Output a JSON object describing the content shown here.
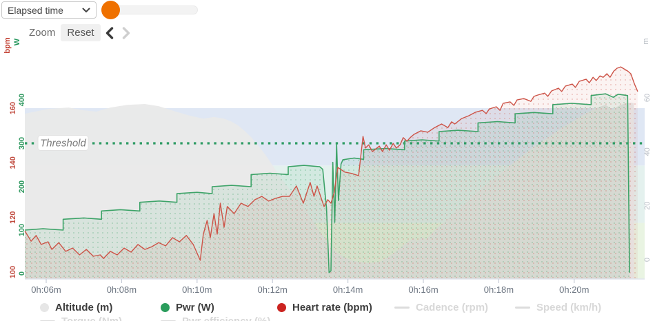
{
  "toolbar": {
    "metric_select": {
      "value": "Elapsed time"
    },
    "zoom_label": "Zoom",
    "reset_label": "Reset"
  },
  "axes": {
    "hr": {
      "title": "bpm",
      "color": "#c0493d",
      "ticks": [
        100,
        120,
        140,
        160
      ]
    },
    "power": {
      "title": "W",
      "color": "#2f9960",
      "ticks": [
        0,
        100,
        200,
        300,
        400
      ]
    },
    "altitude": {
      "title": "m",
      "color": "#b8bdc5",
      "ticks": [
        0,
        20,
        40,
        60
      ]
    },
    "time": {
      "ticks": [
        {
          "t": 360,
          "label": "0h:06m"
        },
        {
          "t": 480,
          "label": "0h:08m"
        },
        {
          "t": 600,
          "label": "0h:10m"
        },
        {
          "t": 720,
          "label": "0h:12m"
        },
        {
          "t": 840,
          "label": "0h:14m"
        },
        {
          "t": 960,
          "label": "0h:16m"
        },
        {
          "t": 1080,
          "label": "0h:18m"
        },
        {
          "t": 1200,
          "label": "0h:20m"
        }
      ]
    }
  },
  "chart_data": {
    "type": "line",
    "x_unit": "elapsed time (seconds)",
    "xlim": [
      326,
      1312
    ],
    "axis_ranges": {
      "hr": [
        100,
        160
      ],
      "power": [
        0,
        400
      ],
      "altitude": [
        0,
        60
      ]
    },
    "grid": false,
    "legend_position": "bottom",
    "threshold": {
      "label": "Threshold",
      "value": 300,
      "axis": "power",
      "color": "#2d9b63"
    },
    "zones": [
      {
        "axis": "hr",
        "from": null,
        "to": 118,
        "color": "#e9f4e2"
      },
      {
        "axis": "hr",
        "from": 118,
        "to": 139,
        "color": "#e4f1ee"
      },
      {
        "axis": "hr",
        "from": 139,
        "to": 160,
        "color": "#dfe7f4"
      }
    ],
    "series": [
      {
        "name": "Altitude (m)",
        "axis": "altitude",
        "style": "area",
        "color": "#e9e9e9",
        "points": [
          [
            326,
            54.1
          ],
          [
            363,
            55.9
          ],
          [
            396,
            56.4
          ],
          [
            418,
            55.4
          ],
          [
            440,
            54.9
          ],
          [
            462,
            56.4
          ],
          [
            489,
            57.4
          ],
          [
            517,
            57.7
          ],
          [
            539,
            56.9
          ],
          [
            566,
            54.9
          ],
          [
            588,
            53.4
          ],
          [
            610,
            52.3
          ],
          [
            627,
            52.9
          ],
          [
            643,
            52.3
          ],
          [
            654,
            51.3
          ],
          [
            665,
            49.8
          ],
          [
            676,
            47.7
          ],
          [
            687,
            45.2
          ],
          [
            698,
            42.1
          ],
          [
            709,
            38.8
          ],
          [
            720,
            35
          ],
          [
            731,
            31.1
          ],
          [
            742,
            27.8
          ],
          [
            753,
            24.3
          ],
          [
            764,
            20.9
          ],
          [
            775,
            17.6
          ],
          [
            782,
            15.1
          ],
          [
            791,
            12
          ],
          [
            800,
            8.9
          ],
          [
            808,
            6.4
          ],
          [
            815,
            4.3
          ],
          [
            824,
            2.3
          ],
          [
            835,
            0.8
          ],
          [
            846,
            -0.3
          ],
          [
            857,
            -0.8
          ],
          [
            873,
            -1.3
          ],
          [
            890,
            -0.8
          ],
          [
            901,
            0.5
          ],
          [
            912,
            2.3
          ],
          [
            923,
            4.3
          ],
          [
            934,
            6.4
          ],
          [
            945,
            7.9
          ],
          [
            950,
            6.9
          ],
          [
            958,
            8.4
          ],
          [
            964,
            7.4
          ],
          [
            972,
            9.4
          ],
          [
            983,
            12
          ],
          [
            994,
            14
          ],
          [
            1005,
            16.6
          ],
          [
            1016,
            18.9
          ],
          [
            1027,
            20.9
          ],
          [
            1038,
            23.5
          ],
          [
            1049,
            25.8
          ],
          [
            1060,
            27.8
          ],
          [
            1071,
            29.9
          ],
          [
            1082,
            31.9
          ],
          [
            1093,
            34
          ],
          [
            1104,
            36
          ],
          [
            1115,
            38
          ],
          [
            1126,
            40.1
          ],
          [
            1136,
            41.9
          ],
          [
            1147,
            43.7
          ],
          [
            1158,
            45.2
          ],
          [
            1169,
            47
          ],
          [
            1180,
            48.8
          ],
          [
            1191,
            50.3
          ],
          [
            1202,
            51.8
          ],
          [
            1213,
            53.4
          ],
          [
            1224,
            54.9
          ],
          [
            1232,
            55.9
          ],
          [
            1241,
            56.7
          ],
          [
            1250,
            57.4
          ],
          [
            1256,
            56.4
          ],
          [
            1261,
            55.4
          ],
          [
            1266,
            56.4
          ],
          [
            1274,
            57.4
          ],
          [
            1283,
            58
          ],
          [
            1290,
            58.2
          ],
          [
            1295,
            58
          ]
        ]
      },
      {
        "name": "Pwr (W)",
        "axis": "power",
        "style": "line+fill",
        "color": "#3da368",
        "points": [
          [
            326,
            100
          ],
          [
            355,
            103
          ],
          [
            387,
            100
          ],
          [
            387,
            125
          ],
          [
            420,
            128
          ],
          [
            448,
            125
          ],
          [
            448,
            144
          ],
          [
            478,
            147
          ],
          [
            509,
            144
          ],
          [
            509,
            164
          ],
          [
            540,
            167
          ],
          [
            568,
            164
          ],
          [
            568,
            184
          ],
          [
            600,
            187
          ],
          [
            624,
            184
          ],
          [
            624,
            200
          ],
          [
            655,
            203
          ],
          [
            686,
            200
          ],
          [
            686,
            228
          ],
          [
            716,
            231
          ],
          [
            745,
            228
          ],
          [
            745,
            246
          ],
          [
            770,
            249
          ],
          [
            795,
            246
          ],
          [
            800,
            240
          ],
          [
            806,
            150
          ],
          [
            810,
            2
          ],
          [
            813,
            6
          ],
          [
            816,
            256
          ],
          [
            819,
            118
          ],
          [
            822,
            298
          ],
          [
            825,
            168
          ],
          [
            829,
            252
          ],
          [
            832,
            262
          ],
          [
            850,
            266
          ],
          [
            865,
            263
          ],
          [
            865,
            285
          ],
          [
            900,
            288
          ],
          [
            930,
            285
          ],
          [
            930,
            305
          ],
          [
            958,
            308
          ],
          [
            985,
            305
          ],
          [
            985,
            327
          ],
          [
            1015,
            330
          ],
          [
            1047,
            327
          ],
          [
            1047,
            347
          ],
          [
            1078,
            350
          ],
          [
            1106,
            347
          ],
          [
            1106,
            368
          ],
          [
            1136,
            371
          ],
          [
            1166,
            368
          ],
          [
            1166,
            389
          ],
          [
            1196,
            392
          ],
          [
            1227,
            389
          ],
          [
            1227,
            410
          ],
          [
            1250,
            414
          ],
          [
            1262,
            406
          ],
          [
            1270,
            413
          ],
          [
            1285,
            410
          ],
          [
            1288,
            2
          ]
        ]
      },
      {
        "name": "Heart rate (bpm)",
        "axis": "hr",
        "style": "line+fill",
        "color": "#cd5347",
        "points": [
          [
            326,
            115.1
          ],
          [
            336,
            111.3
          ],
          [
            344,
            113.4
          ],
          [
            352,
            110.1
          ],
          [
            363,
            111.1
          ],
          [
            369,
            108.3
          ],
          [
            380,
            110.8
          ],
          [
            391,
            107.6
          ],
          [
            402,
            108.8
          ],
          [
            413,
            106.3
          ],
          [
            424,
            108.3
          ],
          [
            435,
            105.8
          ],
          [
            446,
            106.3
          ],
          [
            451,
            105
          ],
          [
            462,
            107.6
          ],
          [
            473,
            106.3
          ],
          [
            484,
            108.8
          ],
          [
            495,
            107.3
          ],
          [
            506,
            110.1
          ],
          [
            517,
            108.3
          ],
          [
            528,
            109.3
          ],
          [
            539,
            110.8
          ],
          [
            550,
            109.6
          ],
          [
            561,
            112.6
          ],
          [
            572,
            111.1
          ],
          [
            583,
            113.4
          ],
          [
            594,
            110.1
          ],
          [
            605,
            104.3
          ],
          [
            610,
            113.9
          ],
          [
            616,
            118.9
          ],
          [
            621,
            112.6
          ],
          [
            627,
            121.4
          ],
          [
            632,
            113.9
          ],
          [
            637,
            125.2
          ],
          [
            643,
            116.4
          ],
          [
            648,
            124
          ],
          [
            659,
            121.4
          ],
          [
            670,
            125.2
          ],
          [
            681,
            124
          ],
          [
            692,
            126.5
          ],
          [
            703,
            127.7
          ],
          [
            714,
            126
          ],
          [
            725,
            127
          ],
          [
            736,
            127.7
          ],
          [
            747,
            127.7
          ],
          [
            758,
            131.5
          ],
          [
            769,
            125.2
          ],
          [
            780,
            132.8
          ],
          [
            786,
            127.7
          ],
          [
            791,
            131.5
          ],
          [
            802,
            124
          ],
          [
            808,
            126.5
          ],
          [
            813,
            125.2
          ],
          [
            818,
            129
          ],
          [
            824,
            138.3
          ],
          [
            835,
            136.6
          ],
          [
            846,
            136.1
          ],
          [
            857,
            135.3
          ],
          [
            864,
            149.7
          ],
          [
            868,
            145.4
          ],
          [
            873,
            146.6
          ],
          [
            879,
            144.1
          ],
          [
            890,
            146.1
          ],
          [
            895,
            144.1
          ],
          [
            901,
            146.6
          ],
          [
            906,
            144.6
          ],
          [
            912,
            147.1
          ],
          [
            917,
            145.4
          ],
          [
            923,
            146.6
          ],
          [
            928,
            149.2
          ],
          [
            934,
            147.9
          ],
          [
            939,
            149.2
          ],
          [
            945,
            150.4
          ],
          [
            956,
            151.7
          ],
          [
            967,
            151.2
          ],
          [
            978,
            152.9
          ],
          [
            989,
            154.2
          ],
          [
            999,
            152.9
          ],
          [
            1005,
            155
          ],
          [
            1010,
            154.2
          ],
          [
            1021,
            156.2
          ],
          [
            1032,
            157.2
          ],
          [
            1043,
            158.5
          ],
          [
            1054,
            159.2
          ],
          [
            1060,
            158
          ],
          [
            1065,
            159.7
          ],
          [
            1076,
            160.5
          ],
          [
            1082,
            159.2
          ],
          [
            1087,
            161.8
          ],
          [
            1098,
            162.3
          ],
          [
            1104,
            161
          ],
          [
            1109,
            163
          ],
          [
            1120,
            163.5
          ],
          [
            1131,
            162.5
          ],
          [
            1136,
            164.3
          ],
          [
            1142,
            164.8
          ],
          [
            1153,
            165.5
          ],
          [
            1158,
            164.3
          ],
          [
            1164,
            166.3
          ],
          [
            1175,
            167.3
          ],
          [
            1180,
            166.1
          ],
          [
            1186,
            168.1
          ],
          [
            1197,
            168.8
          ],
          [
            1202,
            167.6
          ],
          [
            1208,
            169.8
          ],
          [
            1219,
            170.6
          ],
          [
            1224,
            169.3
          ],
          [
            1230,
            171.3
          ],
          [
            1235,
            170.1
          ],
          [
            1241,
            171.8
          ],
          [
            1246,
            171.3
          ],
          [
            1252,
            172.6
          ],
          [
            1257,
            171.3
          ],
          [
            1263,
            173.6
          ],
          [
            1268,
            174.6
          ],
          [
            1274,
            175.1
          ],
          [
            1279,
            174.4
          ],
          [
            1285,
            173.6
          ],
          [
            1290,
            172.6
          ],
          [
            1296,
            168.8
          ],
          [
            1301,
            166.1
          ]
        ]
      }
    ]
  },
  "legend": {
    "rows": [
      [
        {
          "label": "Altitude (m)",
          "marker": "circle",
          "color": "#e6e6e6",
          "enabled": true
        },
        {
          "label": "Pwr (W)",
          "marker": "circle",
          "color": "#2a9d5c",
          "enabled": true
        },
        {
          "label": "Heart rate (bpm)",
          "marker": "circle",
          "color": "#cb2420",
          "enabled": true
        },
        {
          "label": "Cadence (rpm)",
          "marker": "dash",
          "color": "#dcdcdc",
          "enabled": false
        },
        {
          "label": "Speed (km/h)",
          "marker": "dash",
          "color": "#dcdcdc",
          "enabled": false
        }
      ],
      [
        {
          "label": "Torque (Nm)",
          "marker": "dash",
          "color": "#dcdcdc",
          "enabled": false
        },
        {
          "label": "Pwr efficiency (%)",
          "marker": "dash",
          "color": "#dcdcdc",
          "enabled": false
        }
      ]
    ]
  }
}
